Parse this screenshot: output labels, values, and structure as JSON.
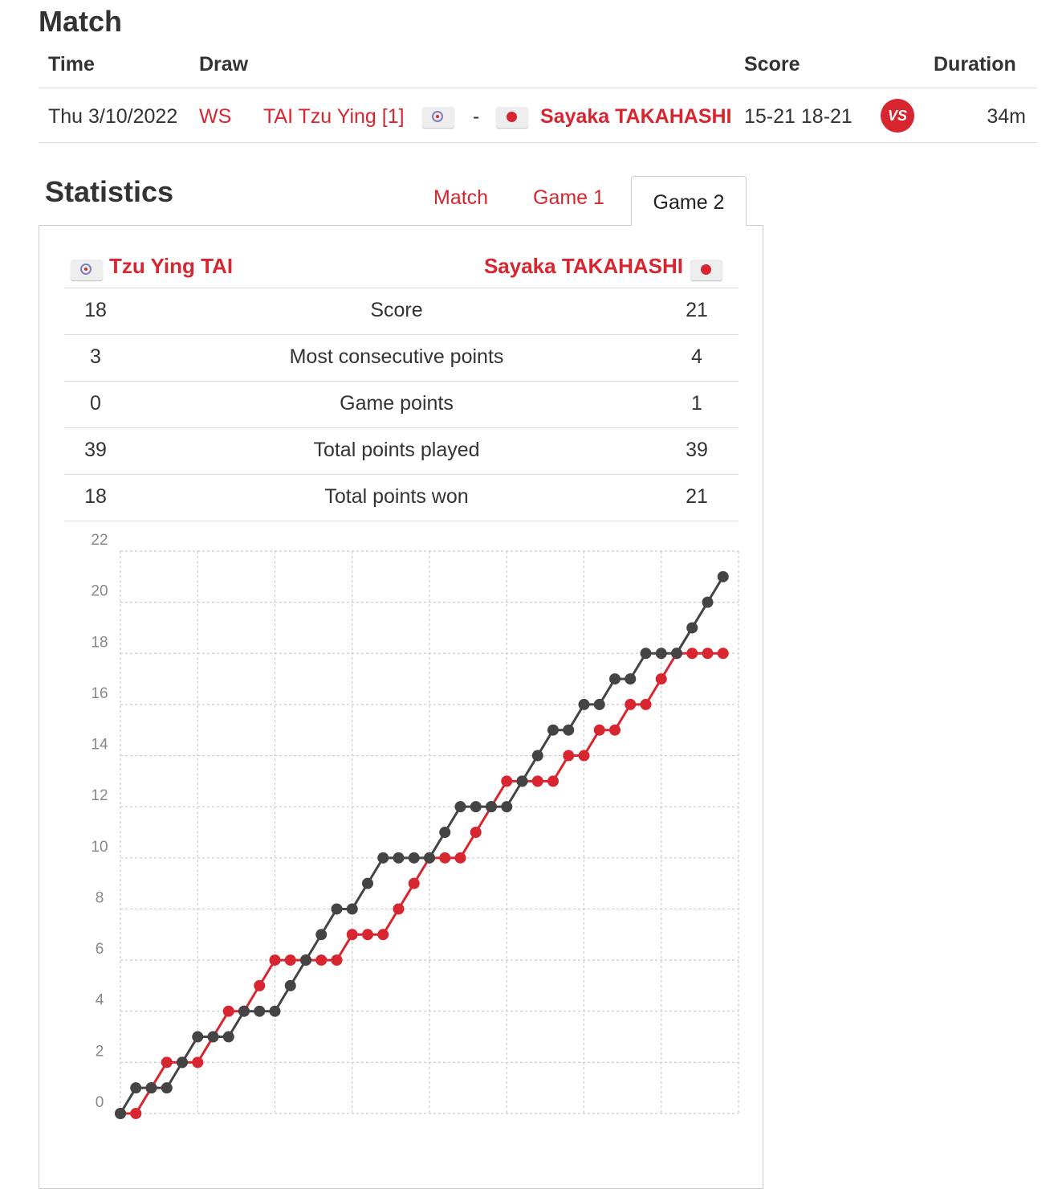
{
  "match_section": {
    "title": "Match",
    "headers": {
      "time": "Time",
      "draw": "Draw",
      "score": "Score",
      "duration": "Duration"
    },
    "row": {
      "time": "Thu 3/10/2022",
      "draw": "WS",
      "player1": "TAI Tzu Ying [1]",
      "separator": "-",
      "player2": "Sayaka TAKAHASHI",
      "score": "15-21 18-21",
      "vs_label": "VS",
      "duration": "34m"
    }
  },
  "statistics": {
    "title": "Statistics",
    "tabs": [
      {
        "label": "Match",
        "active": false
      },
      {
        "label": "Game 1",
        "active": false
      },
      {
        "label": "Game 2",
        "active": true
      }
    ],
    "player1": "Tzu Ying TAI",
    "player2": "Sayaka TAKAHASHI",
    "rows": [
      {
        "left": "18",
        "label": "Score",
        "right": "21"
      },
      {
        "left": "3",
        "label": "Most consecutive points",
        "right": "4"
      },
      {
        "left": "0",
        "label": "Game points",
        "right": "1"
      },
      {
        "left": "39",
        "label": "Total points played",
        "right": "39"
      },
      {
        "left": "18",
        "label": "Total points won",
        "right": "21"
      }
    ]
  },
  "colors": {
    "accent": "#d7262f",
    "dark_series": "#444444",
    "grid": "#cccccc"
  },
  "icons": {
    "player1_flag": "chinese-taipei-flag-icon",
    "player2_flag": "japan-flag-icon",
    "vs": "vs-badge-icon"
  },
  "chart_data": {
    "type": "line",
    "x": [
      0,
      1,
      2,
      3,
      4,
      5,
      6,
      7,
      8,
      9,
      10,
      11,
      12,
      13,
      14,
      15,
      16,
      17,
      18,
      19,
      20,
      21,
      22,
      23,
      24,
      25,
      26,
      27,
      28,
      29,
      30,
      31,
      32,
      33,
      34,
      35,
      36,
      37,
      38,
      39
    ],
    "ylim": [
      0,
      22
    ],
    "xlim": [
      0,
      40
    ],
    "yticks": [
      0,
      2,
      4,
      6,
      8,
      10,
      12,
      14,
      16,
      18,
      20,
      22
    ],
    "grid": true,
    "series": [
      {
        "color": "#d7262f",
        "values": [
          0,
          0,
          1,
          2,
          2,
          2,
          3,
          4,
          4,
          5,
          6,
          6,
          6,
          6,
          6,
          7,
          7,
          7,
          8,
          9,
          10,
          10,
          10,
          11,
          12,
          13,
          13,
          13,
          13,
          14,
          14,
          15,
          15,
          16,
          16,
          17,
          18,
          18,
          18,
          18
        ]
      },
      {
        "color": "#444444",
        "values": [
          0,
          1,
          1,
          1,
          2,
          3,
          3,
          3,
          4,
          4,
          4,
          5,
          6,
          7,
          8,
          8,
          9,
          10,
          10,
          10,
          10,
          11,
          12,
          12,
          12,
          12,
          13,
          14,
          15,
          15,
          16,
          16,
          17,
          17,
          18,
          18,
          18,
          19,
          20,
          21
        ]
      }
    ]
  }
}
